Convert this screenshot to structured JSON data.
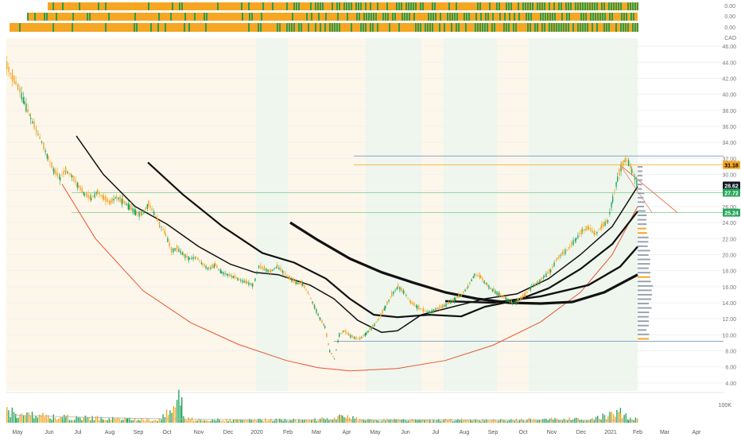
{
  "header": {
    "currency": "CAD"
  },
  "strip_values": [
    "0.00",
    "0.00",
    "0.00"
  ],
  "chart_data": {
    "type": "candlestick",
    "x_labels": [
      "May",
      "Jun",
      "Jul",
      "Aug",
      "Sep",
      "Oct",
      "Nov",
      "Dec",
      "2020",
      "Feb",
      "Mar",
      "Apr",
      "May",
      "Jun",
      "Jul",
      "Aug",
      "Sep",
      "Oct",
      "Nov",
      "Dec",
      "2021",
      "Feb",
      "Mar",
      "Apr"
    ],
    "y_ticks": [
      "46.00",
      "44.00",
      "42.00",
      "40.00",
      "38.00",
      "36.00",
      "34.00",
      "32.00",
      "30.00",
      "28.00",
      "26.00",
      "24.00",
      "22.00",
      "20.00",
      "18.00",
      "16.00",
      "14.00",
      "12.00",
      "10.00",
      "8.00",
      "6.00",
      "4.00"
    ],
    "ylim": [
      3,
      47
    ],
    "price_labels": [
      {
        "value": 31.18,
        "text": "31.18",
        "color": "#f5a623",
        "text_color": "#000000"
      },
      {
        "value": 28.62,
        "text": "28.62",
        "color": "#131722",
        "text_color": "#ffffff"
      },
      {
        "value": 27.72,
        "text": "27.72",
        "color": "#26a65b",
        "text_color": "#ffffff"
      },
      {
        "value": 25.24,
        "text": "25.24",
        "color": "#26a65b",
        "text_color": "#ffffff"
      }
    ],
    "horizontal_lines": [
      {
        "value": 32.3,
        "color": "#7a9cc6"
      },
      {
        "value": 31.18,
        "color": "#f5a623"
      },
      {
        "value": 27.72,
        "color": "#8fcf9b"
      },
      {
        "value": 25.24,
        "color": "#8fcf9b"
      },
      {
        "value": 9.2,
        "color": "#7a9cc6"
      }
    ],
    "price_path": [
      [
        8,
        43.5
      ],
      [
        15,
        42
      ],
      [
        22,
        41
      ],
      [
        30,
        39
      ],
      [
        38,
        37
      ],
      [
        45,
        35.5
      ],
      [
        52,
        34
      ],
      [
        60,
        32
      ],
      [
        67,
        30.5
      ],
      [
        75,
        29.5
      ],
      [
        82,
        30.5
      ],
      [
        90,
        29.8
      ],
      [
        98,
        28.5
      ],
      [
        106,
        27.5
      ],
      [
        114,
        27
      ],
      [
        122,
        27.8
      ],
      [
        130,
        27
      ],
      [
        138,
        26.5
      ],
      [
        146,
        27.2
      ],
      [
        154,
        26.6
      ],
      [
        162,
        26
      ],
      [
        170,
        25.3
      ],
      [
        178,
        25
      ],
      [
        186,
        26.3
      ],
      [
        193,
        25.2
      ],
      [
        200,
        23.8
      ],
      [
        208,
        22.5
      ],
      [
        215,
        20.5
      ],
      [
        222,
        20.8
      ],
      [
        230,
        20
      ],
      [
        238,
        19.5
      ],
      [
        246,
        19.7
      ],
      [
        254,
        18.8
      ],
      [
        262,
        18.2
      ],
      [
        270,
        18.7
      ],
      [
        278,
        17.8
      ],
      [
        286,
        17.5
      ],
      [
        294,
        17.2
      ],
      [
        302,
        16.8
      ],
      [
        310,
        16.5
      ],
      [
        318,
        16.2
      ],
      [
        325,
        18.5
      ],
      [
        332,
        18.2
      ],
      [
        340,
        17.9
      ],
      [
        348,
        18.5
      ],
      [
        356,
        17.8
      ],
      [
        364,
        17
      ],
      [
        372,
        16.5
      ],
      [
        380,
        16.3
      ],
      [
        388,
        15
      ],
      [
        395,
        13.5
      ],
      [
        402,
        12
      ],
      [
        408,
        11
      ],
      [
        414,
        8
      ],
      [
        420,
        7
      ],
      [
        426,
        10
      ],
      [
        432,
        10.5
      ],
      [
        438,
        10
      ],
      [
        445,
        9.6
      ],
      [
        452,
        9.5
      ],
      [
        460,
        10.2
      ],
      [
        468,
        11
      ],
      [
        476,
        12
      ],
      [
        484,
        13.5
      ],
      [
        492,
        15
      ],
      [
        500,
        16
      ],
      [
        508,
        15.3
      ],
      [
        516,
        14
      ],
      [
        524,
        13.5
      ],
      [
        532,
        13
      ],
      [
        540,
        12.8
      ],
      [
        548,
        13.2
      ],
      [
        556,
        13.5
      ],
      [
        564,
        14
      ],
      [
        572,
        14.5
      ],
      [
        580,
        15
      ],
      [
        588,
        16
      ],
      [
        596,
        17.5
      ],
      [
        604,
        17.2
      ],
      [
        612,
        16.2
      ],
      [
        620,
        15.5
      ],
      [
        628,
        15
      ],
      [
        636,
        14.5
      ],
      [
        644,
        14
      ],
      [
        652,
        14.3
      ],
      [
        660,
        15
      ],
      [
        668,
        16
      ],
      [
        676,
        16.5
      ],
      [
        684,
        17.3
      ],
      [
        692,
        18
      ],
      [
        700,
        19.5
      ],
      [
        708,
        20.2
      ],
      [
        716,
        21
      ],
      [
        724,
        22
      ],
      [
        732,
        23
      ],
      [
        740,
        23.3
      ],
      [
        748,
        22.5
      ],
      [
        756,
        23.5
      ],
      [
        764,
        24.2
      ],
      [
        770,
        27
      ],
      [
        776,
        29.5
      ],
      [
        781,
        31
      ],
      [
        786,
        31.8
      ],
      [
        790,
        31.5
      ],
      [
        794,
        30.5
      ],
      [
        798,
        29.5
      ],
      [
        802,
        28.62
      ]
    ],
    "volume_path": [
      [
        8,
        0.55
      ],
      [
        20,
        0.35
      ],
      [
        40,
        0.3
      ],
      [
        60,
        0.25
      ],
      [
        80,
        0.22
      ],
      [
        100,
        0.2
      ],
      [
        130,
        0.18
      ],
      [
        160,
        0.15
      ],
      [
        200,
        0.12
      ],
      [
        228,
        0.98
      ],
      [
        232,
        0.15
      ],
      [
        260,
        0.12
      ],
      [
        300,
        0.1
      ],
      [
        340,
        0.12
      ],
      [
        380,
        0.1
      ],
      [
        420,
        0.18
      ],
      [
        430,
        0.25
      ],
      [
        460,
        0.1
      ],
      [
        500,
        0.12
      ],
      [
        540,
        0.1
      ],
      [
        580,
        0.12
      ],
      [
        620,
        0.1
      ],
      [
        660,
        0.12
      ],
      [
        700,
        0.15
      ],
      [
        740,
        0.12
      ],
      [
        780,
        0.4
      ],
      [
        790,
        0.2
      ],
      [
        802,
        0.15
      ]
    ],
    "moving_averages": [
      {
        "label": "fast-ma",
        "points": [
          [
            96,
            34.8
          ],
          [
            130,
            30
          ],
          [
            170,
            26
          ],
          [
            210,
            23.8
          ],
          [
            250,
            21
          ],
          [
            290,
            18.8
          ],
          [
            320,
            17.8
          ],
          [
            350,
            17.5
          ],
          [
            390,
            16.2
          ],
          [
            420,
            14.5
          ],
          [
            450,
            11.8
          ],
          [
            480,
            10.3
          ],
          [
            500,
            10.5
          ],
          [
            530,
            12.5
          ],
          [
            570,
            13.5
          ],
          [
            610,
            14.5
          ],
          [
            650,
            15.1
          ],
          [
            690,
            17
          ],
          [
            730,
            20
          ],
          [
            770,
            23.5
          ],
          [
            802,
            28.5
          ]
        ],
        "width": 1.5
      },
      {
        "label": "mid-ma",
        "points": [
          [
            186,
            31.5
          ],
          [
            230,
            27.5
          ],
          [
            280,
            23.5
          ],
          [
            330,
            20.2
          ],
          [
            370,
            19
          ],
          [
            410,
            17
          ],
          [
            440,
            14.5
          ],
          [
            470,
            12.5
          ],
          [
            500,
            12.2
          ],
          [
            540,
            12.5
          ],
          [
            580,
            12.3
          ],
          [
            610,
            13.5
          ],
          [
            650,
            14.3
          ],
          [
            690,
            15.8
          ],
          [
            730,
            18.2
          ],
          [
            770,
            21.3
          ],
          [
            802,
            25.4
          ]
        ],
        "width": 2.2
      },
      {
        "label": "slow-ma",
        "points": [
          [
            365,
            24
          ],
          [
            400,
            21.8
          ],
          [
            440,
            19.5
          ],
          [
            480,
            17.8
          ],
          [
            520,
            16.5
          ],
          [
            560,
            15.3
          ],
          [
            600,
            14.5
          ],
          [
            640,
            14
          ],
          [
            680,
            13.9
          ],
          [
            720,
            14.1
          ],
          [
            760,
            15.3
          ],
          [
            802,
            17.5
          ]
        ],
        "width": 3.2
      },
      {
        "label": "medium-ma-2",
        "points": [
          [
            560,
            14.2
          ],
          [
            620,
            14
          ],
          [
            680,
            14.8
          ],
          [
            740,
            16.2
          ],
          [
            780,
            18.5
          ],
          [
            802,
            21
          ]
        ],
        "width": 2.4
      }
    ],
    "arc": {
      "label": "red-arc",
      "points": [
        [
          78,
          28.8
        ],
        [
          120,
          22
        ],
        [
          180,
          15.5
        ],
        [
          240,
          11.5
        ],
        [
          300,
          8.8
        ],
        [
          360,
          6.8
        ],
        [
          400,
          5.9
        ],
        [
          440,
          5.5
        ],
        [
          500,
          5.8
        ],
        [
          560,
          6.8
        ],
        [
          620,
          8.7
        ],
        [
          680,
          11.6
        ],
        [
          730,
          15.3
        ],
        [
          770,
          20
        ],
        [
          802,
          26
        ]
      ]
    }
  }
}
